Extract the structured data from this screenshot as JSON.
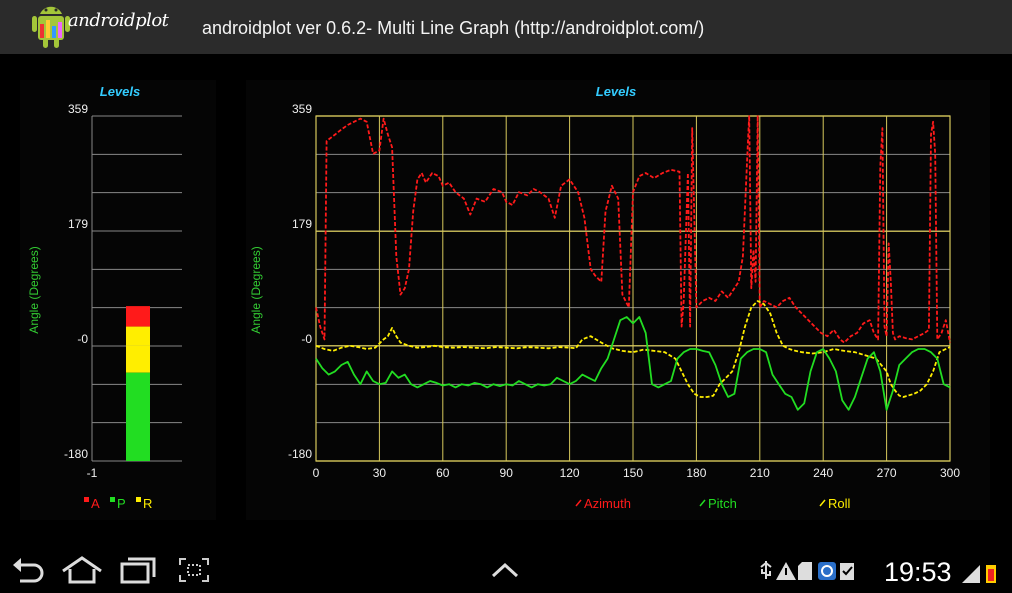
{
  "app": {
    "logo_text": "androidplot",
    "title": "androidplot ver 0.6.2- Multi Line Graph (http://androidplot.com/)"
  },
  "colors": {
    "azimuth": "#ff1a1a",
    "pitch": "#22dd22",
    "roll": "#ffee00",
    "grid": "#d7c95c",
    "title": "#33ccff",
    "ylabel": "#33cc33"
  },
  "status": {
    "time": "19:53"
  },
  "navbar": {
    "icons": [
      "back-icon",
      "home-icon",
      "recent-apps-icon",
      "screenshot-icon",
      "chevron-up-icon"
    ],
    "status_icons": [
      "usb-icon",
      "warning-icon",
      "sd-card-icon",
      "sync-icon",
      "clipboard-icon",
      "signal-icon",
      "battery-icon"
    ]
  },
  "chart_data": [
    {
      "type": "bar",
      "title": "Levels",
      "ylabel": "Angle (Degrees)",
      "ylim": [
        -180,
        359
      ],
      "yticks": [
        "359",
        "179",
        "-0",
        "-180"
      ],
      "xticks": [
        "-1"
      ],
      "stacked": true,
      "series": [
        {
          "name": "A",
          "value": 62,
          "color": "#ff1a1a"
        },
        {
          "name": "P",
          "value": -42,
          "color": "#22dd22"
        },
        {
          "name": "R",
          "value": 0,
          "color": "#ffee00"
        }
      ],
      "segments": [
        {
          "name": "A",
          "from": 30,
          "to": 62,
          "color": "#ff1a1a"
        },
        {
          "name": "R",
          "from": -42,
          "to": 0,
          "color": "#ffee00"
        },
        {
          "name": "R-top",
          "from": 0,
          "to": 30,
          "color": "#ffee00"
        },
        {
          "name": "P",
          "from": -180,
          "to": -42,
          "color": "#22dd22"
        }
      ],
      "legend": [
        "A",
        "P",
        "R"
      ],
      "legend_position": "bottom"
    },
    {
      "type": "line",
      "title": "Levels",
      "ylabel": "Angle (Degrees)",
      "xlim": [
        0,
        300
      ],
      "ylim": [
        -180,
        359
      ],
      "xticks": [
        "0",
        "30",
        "60",
        "90",
        "120",
        "150",
        "180",
        "210",
        "240",
        "270",
        "300"
      ],
      "yticks": [
        "359",
        "179",
        "-0",
        "-180"
      ],
      "legend": [
        "Azimuth",
        "Pitch",
        "Roll"
      ],
      "legend_position": "bottom",
      "series": [
        {
          "name": "Azimuth",
          "color": "#ff1a1a",
          "dashed": true,
          "x": [
            0,
            2,
            4,
            5,
            7,
            9,
            12,
            15,
            18,
            21,
            24,
            27,
            30,
            32,
            34,
            36,
            38,
            40,
            42,
            44,
            46,
            48,
            50,
            52,
            55,
            58,
            60,
            63,
            66,
            70,
            73,
            76,
            80,
            84,
            88,
            90,
            93,
            96,
            100,
            103,
            106,
            110,
            113,
            116,
            120,
            124,
            127,
            130,
            132,
            135,
            137,
            140,
            143,
            145,
            148,
            150,
            153,
            156,
            160,
            164,
            168,
            172,
            173,
            174,
            175,
            176,
            177,
            178,
            180,
            183,
            186,
            189,
            192,
            195,
            198,
            200,
            202,
            204,
            205,
            206,
            207,
            208,
            209,
            210,
            212,
            215,
            218,
            221,
            224,
            227,
            230,
            233,
            236,
            239,
            242,
            245,
            248,
            250,
            253,
            256,
            259,
            262,
            264,
            266,
            267,
            268,
            269,
            270,
            271,
            272,
            273,
            274,
            276,
            279,
            282,
            285,
            288,
            290,
            291,
            292,
            293,
            294,
            295,
            296,
            298,
            300
          ],
          "y": [
            60,
            30,
            10,
            320,
            325,
            330,
            338,
            345,
            350,
            355,
            350,
            300,
            305,
            355,
            330,
            310,
            140,
            80,
            90,
            120,
            210,
            260,
            270,
            255,
            270,
            265,
            250,
            255,
            240,
            230,
            205,
            230,
            225,
            245,
            240,
            225,
            220,
            240,
            235,
            245,
            240,
            230,
            200,
            250,
            260,
            240,
            200,
            120,
            110,
            100,
            210,
            250,
            230,
            80,
            60,
            240,
            265,
            270,
            262,
            270,
            275,
            272,
            30,
            70,
            170,
            270,
            30,
            340,
            60,
            70,
            75,
            70,
            85,
            75,
            90,
            100,
            140,
            290,
            360,
            90,
            150,
            100,
            360,
            60,
            70,
            65,
            60,
            70,
            75,
            60,
            50,
            40,
            30,
            20,
            15,
            25,
            10,
            5,
            15,
            20,
            35,
            40,
            20,
            10,
            280,
            340,
            30,
            15,
            160,
            100,
            20,
            10,
            15,
            12,
            10,
            15,
            20,
            25,
            330,
            350,
            300,
            10,
            15,
            20,
            40,
            5
          ]
        },
        {
          "name": "Pitch",
          "color": "#22dd22",
          "dashed": false,
          "x": [
            0,
            3,
            6,
            9,
            12,
            15,
            18,
            21,
            24,
            27,
            30,
            33,
            36,
            39,
            42,
            45,
            48,
            51,
            54,
            57,
            60,
            63,
            66,
            69,
            72,
            75,
            78,
            81,
            84,
            87,
            90,
            93,
            96,
            99,
            102,
            105,
            108,
            111,
            114,
            117,
            120,
            123,
            126,
            129,
            132,
            135,
            138,
            141,
            144,
            147,
            150,
            153,
            156,
            159,
            162,
            165,
            168,
            171,
            174,
            177,
            180,
            183,
            186,
            189,
            192,
            195,
            198,
            201,
            204,
            207,
            210,
            213,
            216,
            219,
            222,
            225,
            228,
            231,
            234,
            237,
            240,
            243,
            246,
            249,
            252,
            255,
            258,
            261,
            264,
            267,
            270,
            273,
            276,
            279,
            282,
            285,
            288,
            291,
            294,
            297,
            300
          ],
          "y": [
            -20,
            -35,
            -45,
            -40,
            -30,
            -25,
            -45,
            -60,
            -40,
            -55,
            -60,
            -58,
            -40,
            -50,
            -45,
            -60,
            -65,
            -60,
            -55,
            -58,
            -62,
            -60,
            -65,
            -60,
            -62,
            -58,
            -60,
            -65,
            -60,
            -63,
            -60,
            -62,
            -55,
            -60,
            -65,
            -60,
            -62,
            -60,
            -50,
            -55,
            -60,
            -55,
            -45,
            -50,
            -55,
            -35,
            -20,
            10,
            40,
            45,
            35,
            45,
            20,
            -60,
            -65,
            -60,
            -55,
            -20,
            -10,
            -5,
            -5,
            -8,
            -10,
            -30,
            -60,
            -80,
            -75,
            -20,
            -10,
            -5,
            -5,
            -10,
            -45,
            -60,
            -75,
            -80,
            -100,
            -90,
            -40,
            -10,
            -5,
            -20,
            -40,
            -85,
            -100,
            -80,
            -50,
            -20,
            -10,
            -40,
            -100,
            -70,
            -30,
            -20,
            -10,
            -5,
            -5,
            -10,
            -20,
            -60,
            -65
          ]
        },
        {
          "name": "Roll",
          "color": "#ffee00",
          "dashed": true,
          "x": [
            0,
            4,
            8,
            12,
            16,
            20,
            24,
            28,
            32,
            34,
            36,
            38,
            40,
            44,
            48,
            52,
            56,
            60,
            65,
            70,
            75,
            80,
            85,
            90,
            95,
            100,
            105,
            110,
            115,
            120,
            123,
            126,
            130,
            135,
            140,
            145,
            150,
            155,
            160,
            165,
            170,
            173,
            176,
            179,
            182,
            185,
            188,
            191,
            194,
            197,
            200,
            203,
            206,
            209,
            212,
            215,
            218,
            221,
            224,
            227,
            230,
            235,
            240,
            245,
            250,
            255,
            260,
            265,
            270,
            272,
            274,
            276,
            278,
            280,
            283,
            286,
            289,
            292,
            295,
            298,
            300
          ],
          "y": [
            0,
            -5,
            -8,
            -3,
            0,
            -2,
            -5,
            -3,
            10,
            15,
            28,
            15,
            5,
            0,
            -3,
            -2,
            0,
            -2,
            -3,
            -2,
            -3,
            -4,
            -2,
            -3,
            -4,
            -2,
            -3,
            -4,
            -2,
            -3,
            -4,
            10,
            15,
            5,
            -4,
            -8,
            -10,
            -6,
            -8,
            -10,
            -20,
            -40,
            -60,
            -75,
            -80,
            -80,
            -78,
            -60,
            -50,
            -40,
            -10,
            30,
            60,
            70,
            65,
            50,
            20,
            0,
            -5,
            -8,
            -10,
            -12,
            -10,
            -5,
            -8,
            -10,
            -15,
            -20,
            -40,
            -60,
            -70,
            -78,
            -80,
            -78,
            -75,
            -70,
            -60,
            -40,
            -10,
            -5,
            -2
          ]
        }
      ]
    }
  ]
}
